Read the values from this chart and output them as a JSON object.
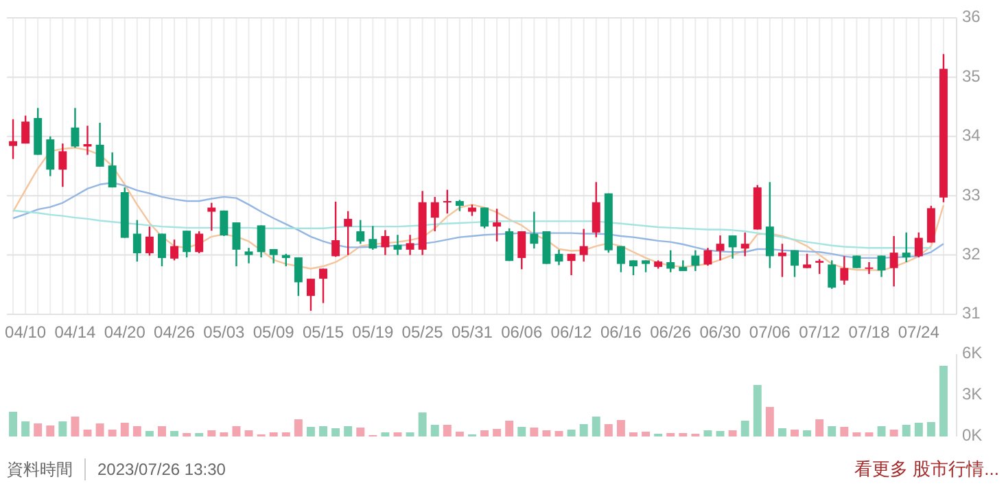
{
  "chart_data": [
    {
      "type": "candlestick",
      "categories": [
        null,
        "04/10",
        null,
        null,
        null,
        "04/14",
        null,
        null,
        null,
        "04/20",
        null,
        null,
        null,
        "04/26",
        null,
        null,
        null,
        "05/03",
        null,
        null,
        null,
        "05/09",
        null,
        null,
        null,
        "05/15",
        null,
        null,
        null,
        "05/19",
        null,
        null,
        null,
        "05/25",
        null,
        null,
        null,
        "05/31",
        null,
        null,
        null,
        "06/06",
        null,
        null,
        null,
        "06/12",
        null,
        null,
        null,
        "06/16",
        null,
        null,
        null,
        "06/26",
        null,
        null,
        null,
        "06/30",
        null,
        null,
        null,
        "07/06",
        null,
        null,
        null,
        "07/12",
        null,
        null,
        null,
        "07/18",
        null,
        null,
        null,
        "07/24",
        null,
        null
      ],
      "ohlc": [
        [
          33.84,
          34.29,
          33.62,
          33.92
        ],
        [
          33.88,
          34.35,
          33.88,
          34.25
        ],
        [
          34.31,
          34.48,
          33.69,
          33.69
        ],
        [
          33.95,
          34.0,
          33.33,
          33.44
        ],
        [
          33.44,
          33.88,
          33.15,
          33.75
        ],
        [
          34.15,
          34.48,
          33.81,
          33.83
        ],
        [
          33.83,
          34.18,
          33.69,
          33.87
        ],
        [
          33.86,
          34.23,
          33.49,
          33.49
        ],
        [
          33.51,
          33.73,
          33.14,
          33.14
        ],
        [
          33.06,
          33.14,
          32.29,
          32.29
        ],
        [
          32.36,
          32.59,
          31.89,
          32.03
        ],
        [
          32.03,
          32.48,
          31.99,
          32.31
        ],
        [
          32.36,
          32.36,
          31.81,
          31.95
        ],
        [
          31.94,
          32.26,
          31.91,
          32.15
        ],
        [
          32.41,
          32.41,
          31.96,
          32.05
        ],
        [
          32.05,
          32.4,
          32.03,
          32.36
        ],
        [
          32.73,
          32.88,
          32.41,
          32.8
        ],
        [
          32.75,
          32.75,
          32.32,
          32.33
        ],
        [
          32.55,
          32.55,
          31.81,
          32.09
        ],
        [
          32.06,
          32.12,
          31.86,
          32.0
        ],
        [
          32.5,
          32.5,
          31.96,
          32.05
        ],
        [
          32.1,
          32.1,
          31.86,
          32.0
        ],
        [
          32.0,
          32.02,
          31.81,
          31.95
        ],
        [
          31.96,
          31.96,
          31.31,
          31.54
        ],
        [
          31.31,
          31.6,
          31.06,
          31.6
        ],
        [
          31.6,
          31.77,
          31.19,
          31.77
        ],
        [
          31.98,
          32.9,
          31.97,
          32.25
        ],
        [
          32.48,
          32.74,
          32.0,
          32.61
        ],
        [
          32.4,
          32.59,
          32.19,
          32.23
        ],
        [
          32.27,
          32.49,
          32.09,
          32.11
        ],
        [
          32.13,
          32.42,
          32.0,
          32.32
        ],
        [
          32.17,
          32.34,
          32.0,
          32.09
        ],
        [
          32.09,
          32.34,
          32.0,
          32.2
        ],
        [
          32.09,
          33.08,
          32.0,
          32.89
        ],
        [
          32.63,
          32.98,
          32.4,
          32.89
        ],
        [
          32.89,
          33.1,
          32.7,
          32.91
        ],
        [
          32.91,
          32.93,
          32.74,
          32.83
        ],
        [
          32.73,
          32.85,
          32.66,
          32.8
        ],
        [
          32.8,
          32.8,
          32.45,
          32.48
        ],
        [
          32.48,
          32.78,
          32.23,
          32.55
        ],
        [
          32.4,
          32.45,
          31.9,
          31.9
        ],
        [
          31.95,
          32.4,
          31.76,
          32.4
        ],
        [
          32.36,
          32.73,
          32.11,
          32.19
        ],
        [
          32.4,
          32.4,
          31.85,
          31.85
        ],
        [
          32.02,
          32.09,
          31.83,
          31.89
        ],
        [
          31.9,
          32.02,
          31.66,
          32.02
        ],
        [
          32.0,
          32.44,
          31.89,
          32.15
        ],
        [
          32.38,
          33.23,
          32.3,
          32.89
        ],
        [
          33.04,
          33.04,
          32.04,
          32.08
        ],
        [
          32.15,
          32.15,
          31.71,
          31.85
        ],
        [
          31.91,
          31.91,
          31.66,
          31.81
        ],
        [
          31.91,
          31.91,
          31.71,
          31.85
        ],
        [
          31.8,
          31.91,
          31.77,
          31.89
        ],
        [
          31.88,
          32.08,
          31.71,
          31.77
        ],
        [
          31.8,
          31.91,
          31.73,
          31.73
        ],
        [
          31.99,
          32.08,
          31.73,
          31.82
        ],
        [
          31.84,
          32.12,
          31.82,
          32.08
        ],
        [
          32.07,
          32.33,
          31.91,
          32.19
        ],
        [
          32.33,
          32.33,
          31.94,
          32.13
        ],
        [
          32.11,
          32.38,
          31.98,
          32.19
        ],
        [
          32.43,
          33.18,
          32.43,
          33.14
        ],
        [
          32.48,
          33.23,
          31.78,
          31.98
        ],
        [
          31.98,
          32.19,
          31.63,
          32.04
        ],
        [
          32.08,
          32.08,
          31.63,
          31.82
        ],
        [
          31.78,
          32.02,
          31.78,
          31.84
        ],
        [
          31.87,
          31.93,
          31.68,
          31.9
        ],
        [
          31.84,
          31.91,
          31.43,
          31.45
        ],
        [
          31.57,
          31.98,
          31.5,
          31.78
        ],
        [
          31.99,
          31.99,
          31.78,
          31.78
        ],
        [
          31.77,
          31.88,
          31.68,
          31.79
        ],
        [
          31.99,
          31.99,
          31.63,
          31.74
        ],
        [
          31.78,
          32.32,
          31.47,
          32.04
        ],
        [
          32.04,
          32.38,
          31.88,
          31.96
        ],
        [
          31.98,
          32.38,
          31.96,
          32.29
        ],
        [
          32.21,
          32.83,
          32.21,
          32.79
        ],
        [
          32.97,
          35.39,
          32.89,
          35.14
        ]
      ],
      "colors": [
        "#e0173f",
        "#e0173f",
        "#0e9c73",
        "#0e9c73",
        "#e0173f",
        "#0e9c73",
        "#e0173f",
        "#0e9c73",
        "#0e9c73",
        "#0e9c73",
        "#0e9c73",
        "#e0173f",
        "#0e9c73",
        "#e0173f",
        "#0e9c73",
        "#e0173f",
        "#e0173f",
        "#0e9c73",
        "#0e9c73",
        "#0e9c73",
        "#0e9c73",
        "#0e9c73",
        "#0e9c73",
        "#0e9c73",
        "#e0173f",
        "#e0173f",
        "#e0173f",
        "#e0173f",
        "#0e9c73",
        "#0e9c73",
        "#e0173f",
        "#0e9c73",
        "#e0173f",
        "#e0173f",
        "#e0173f",
        "#e0173f",
        "#0e9c73",
        "#e0173f",
        "#0e9c73",
        "#e0173f",
        "#0e9c73",
        "#e0173f",
        "#0e9c73",
        "#0e9c73",
        "#0e9c73",
        "#e0173f",
        "#e0173f",
        "#e0173f",
        "#0e9c73",
        "#0e9c73",
        "#0e9c73",
        "#0e9c73",
        "#e0173f",
        "#0e9c73",
        "#0e9c73",
        "#0e9c73",
        "#e0173f",
        "#e0173f",
        "#0e9c73",
        "#e0173f",
        "#e0173f",
        "#0e9c73",
        "#e0173f",
        "#0e9c73",
        "#e0173f",
        "#e0173f",
        "#0e9c73",
        "#e0173f",
        "#0e9c73",
        "#e0173f",
        "#0e9c73",
        "#e0173f",
        "#0e9c73",
        "#e0173f",
        "#e0173f",
        "#e0173f"
      ],
      "series": [
        {
          "type": "line",
          "color": "#f5c49a",
          "values": [
            32.73,
            33.1,
            33.46,
            33.75,
            33.79,
            33.81,
            33.77,
            33.69,
            33.5,
            33.19,
            32.85,
            32.54,
            32.31,
            32.15,
            32.12,
            32.19,
            32.31,
            32.35,
            32.31,
            32.23,
            32.08,
            31.92,
            31.85,
            31.81,
            31.77,
            31.81,
            31.88,
            32.0,
            32.15,
            32.18,
            32.2,
            32.22,
            32.25,
            32.3,
            32.45,
            32.65,
            32.8,
            32.85,
            32.8,
            32.72,
            32.6,
            32.5,
            32.35,
            32.25,
            32.1,
            32.07,
            32.08,
            32.15,
            32.2,
            32.15,
            32.05,
            31.95,
            31.87,
            31.82,
            31.8,
            31.82,
            31.85,
            31.92,
            32.0,
            32.08,
            32.35,
            32.36,
            32.32,
            32.25,
            32.15,
            32.0,
            31.85,
            31.78,
            31.75,
            31.75,
            31.74,
            31.8,
            31.88,
            31.98,
            32.15,
            32.84
          ]
        },
        {
          "type": "line",
          "color": "#93b6e2",
          "values": [
            32.62,
            32.69,
            32.77,
            32.81,
            32.88,
            33.0,
            33.12,
            33.19,
            33.22,
            33.17,
            33.09,
            33.04,
            32.98,
            32.94,
            32.91,
            32.91,
            32.95,
            32.98,
            32.96,
            32.85,
            32.73,
            32.62,
            32.52,
            32.42,
            32.31,
            32.23,
            32.17,
            32.13,
            32.13,
            32.14,
            32.15,
            32.16,
            32.17,
            32.19,
            32.22,
            32.26,
            32.3,
            32.32,
            32.34,
            32.35,
            32.36,
            32.37,
            32.37,
            32.37,
            32.37,
            32.37,
            32.36,
            32.36,
            32.35,
            32.32,
            32.3,
            32.27,
            32.24,
            32.22,
            32.18,
            32.13,
            32.08,
            32.06,
            32.05,
            32.05,
            32.1,
            32.1,
            32.08,
            32.07,
            32.06,
            32.05,
            32.02,
            31.98,
            31.95,
            31.95,
            31.95,
            31.96,
            31.97,
            31.98,
            32.05,
            32.19
          ]
        },
        {
          "type": "line",
          "color": "#a3e4e2",
          "values": [
            32.75,
            32.73,
            32.71,
            32.68,
            32.66,
            32.63,
            32.61,
            32.58,
            32.56,
            32.54,
            32.52,
            32.5,
            32.48,
            32.47,
            32.46,
            32.46,
            32.46,
            32.46,
            32.46,
            32.46,
            32.45,
            32.45,
            32.45,
            32.45,
            32.45,
            32.45,
            32.47,
            32.48,
            32.48,
            32.48,
            32.48,
            32.48,
            32.49,
            32.5,
            32.52,
            32.53,
            32.54,
            32.55,
            32.56,
            32.57,
            32.57,
            32.57,
            32.57,
            32.57,
            32.57,
            32.57,
            32.57,
            32.57,
            32.55,
            32.53,
            32.51,
            32.49,
            32.47,
            32.46,
            32.45,
            32.44,
            32.43,
            32.43,
            32.42,
            32.4,
            32.37,
            32.34,
            32.3,
            32.26,
            32.22,
            32.19,
            32.16,
            32.14,
            32.13,
            32.12,
            32.12,
            32.12,
            32.12,
            32.12,
            32.12,
            null
          ]
        }
      ],
      "ylim": [
        31,
        36
      ],
      "yticks": [
        31,
        32,
        33,
        34,
        35,
        36
      ],
      "grid": true
    },
    {
      "type": "bar",
      "categories": [
        null,
        null,
        null,
        null,
        null,
        null,
        null,
        null,
        null,
        null,
        null,
        null,
        null,
        null,
        null,
        null,
        null,
        null,
        null,
        null,
        null,
        null,
        null,
        null,
        null,
        null,
        null,
        null,
        null,
        null,
        null,
        null,
        null,
        null,
        null,
        null,
        null,
        null,
        null,
        null,
        null,
        null,
        null,
        null,
        null,
        null,
        null,
        null,
        null,
        null,
        null,
        null,
        null,
        null,
        null,
        null,
        null,
        null,
        null,
        null,
        null,
        null,
        null,
        null,
        null,
        null,
        null,
        null,
        null,
        null,
        null,
        null,
        null,
        null,
        null,
        null
      ],
      "values": [
        1800,
        1100,
        950,
        800,
        1100,
        1450,
        500,
        950,
        500,
        1000,
        750,
        400,
        750,
        400,
        250,
        250,
        450,
        300,
        750,
        450,
        150,
        300,
        300,
        1250,
        700,
        750,
        600,
        750,
        650,
        100,
        300,
        300,
        300,
        1750,
        850,
        850,
        350,
        150,
        450,
        550,
        1150,
        700,
        650,
        450,
        400,
        500,
        900,
        1450,
        900,
        1200,
        300,
        350,
        200,
        250,
        250,
        200,
        450,
        400,
        450,
        1150,
        3750,
        2150,
        600,
        500,
        450,
        1250,
        750,
        700,
        300,
        300,
        750,
        500,
        850,
        1000,
        1050,
        5150
      ],
      "colors": [
        "#93d6bd",
        "#93d6bd",
        "#f4a4ae",
        "#f4a4ae",
        "#93d6bd",
        "#f4a4ae",
        "#f4a4ae",
        "#f4a4ae",
        "#f4a4ae",
        "#f4a4ae",
        "#f4a4ae",
        "#93d6bd",
        "#f4a4ae",
        "#93d6bd",
        "#f4a4ae",
        "#93d6bd",
        "#f4a4ae",
        "#f4a4ae",
        "#f4a4ae",
        "#f4a4ae",
        "#f4a4ae",
        "#f4a4ae",
        "#f4a4ae",
        "#f4a4ae",
        "#93d6bd",
        "#93d6bd",
        "#93d6bd",
        "#93d6bd",
        "#f4a4ae",
        "#f4a4ae",
        "#93d6bd",
        "#f4a4ae",
        "#93d6bd",
        "#93d6bd",
        "#93d6bd",
        "#f4a4ae",
        "#f4a4ae",
        "#93d6bd",
        "#f4a4ae",
        "#f4a4ae",
        "#f4a4ae",
        "#93d6bd",
        "#f4a4ae",
        "#f4a4ae",
        "#f4a4ae",
        "#93d6bd",
        "#93d6bd",
        "#93d6bd",
        "#f4a4ae",
        "#f4a4ae",
        "#f4a4ae",
        "#f4a4ae",
        "#93d6bd",
        "#f4a4ae",
        "#f4a4ae",
        "#f4a4ae",
        "#93d6bd",
        "#93d6bd",
        "#f4a4ae",
        "#93d6bd",
        "#93d6bd",
        "#f4a4ae",
        "#93d6bd",
        "#f4a4ae",
        "#93d6bd",
        "#f4a4ae",
        "#93d6bd",
        "#f4a4ae",
        "#f4a4ae",
        "#f4a4ae",
        "#93d6bd",
        "#f4a4ae",
        "#93d6bd",
        "#93d6bd",
        "#93d6bd",
        "#93d6bd"
      ],
      "ylim": [
        0,
        6000
      ],
      "yticks": [
        {
          "value": 0,
          "label": "0K"
        },
        {
          "value": 3000,
          "label": "3K"
        },
        {
          "value": 6000,
          "label": "6K"
        }
      ],
      "tick_labels": "y",
      "annotations": [
        "資料時間",
        "2023/07/26 13:30",
        "看更多 股市行情..."
      ]
    }
  ]
}
